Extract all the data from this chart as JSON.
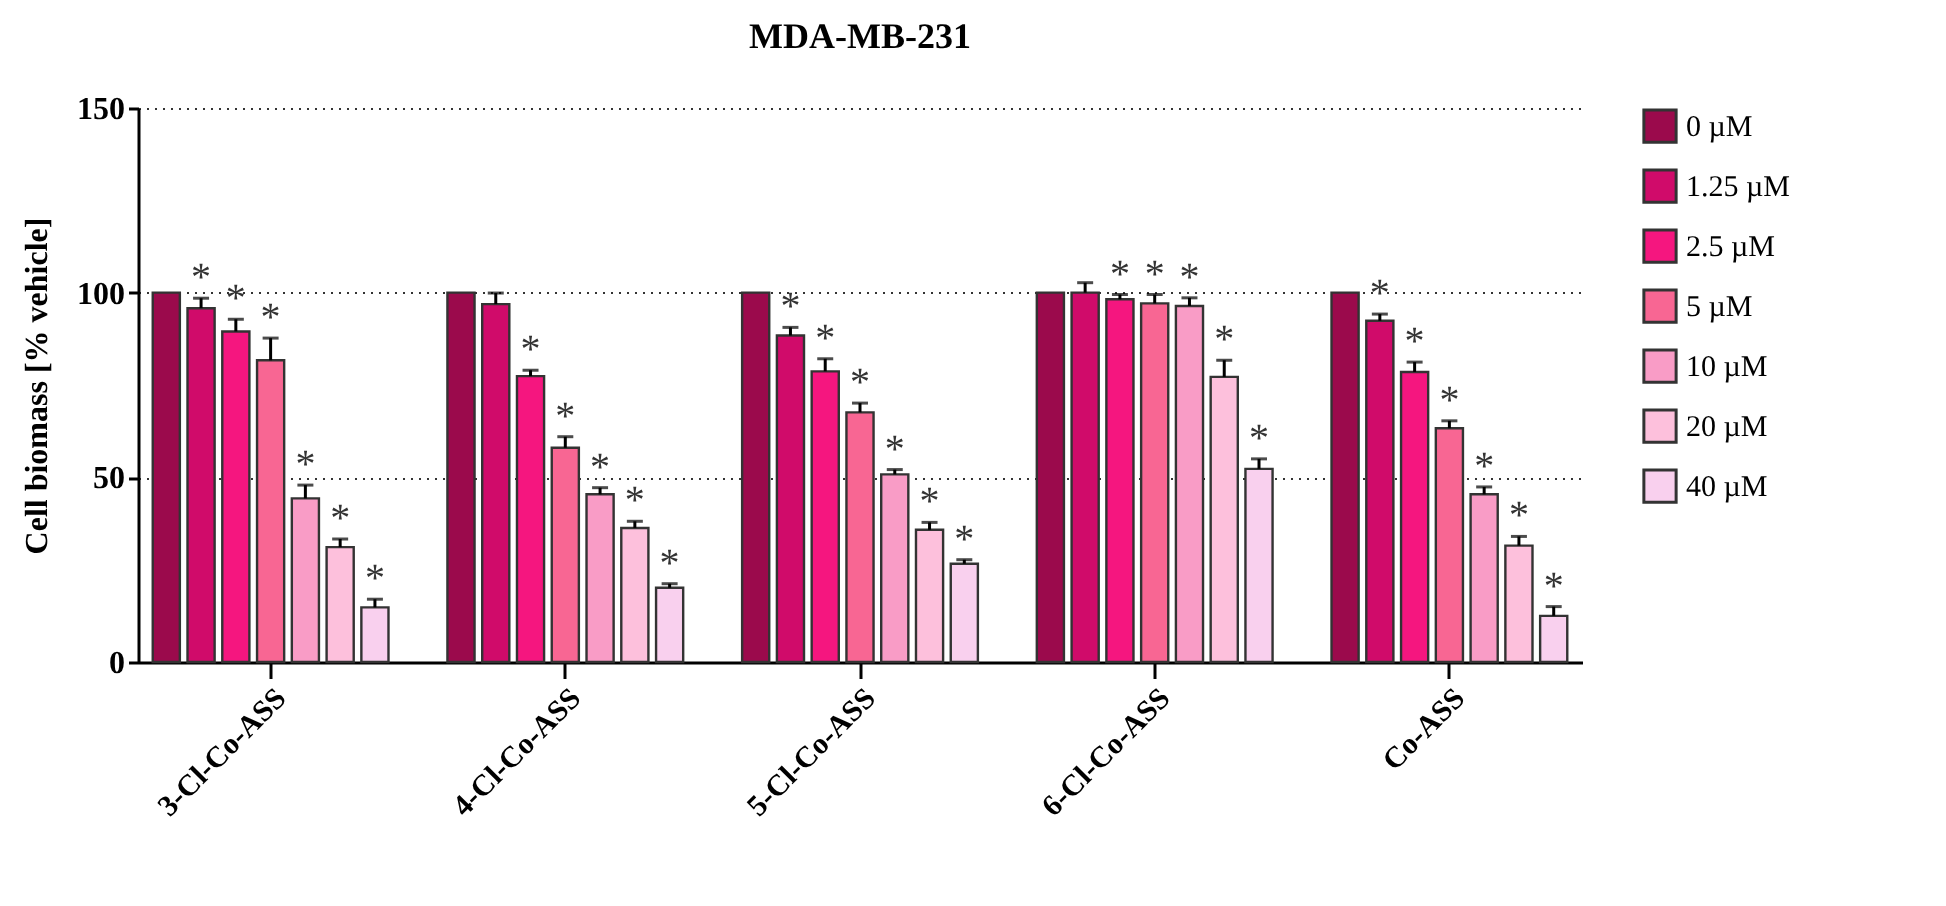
{
  "chart_data": {
    "type": "bar",
    "title": "MDA-MB-231",
    "ylabel": "Cell biomass [% vehicle]",
    "categories": [
      "3-Cl-Co-ASS",
      "4-Cl-Co-ASS",
      "5-Cl-Co-ASS",
      "6-Cl-Co-ASS",
      "Co-ASS"
    ],
    "ylim": [
      0,
      150
    ],
    "yticks": [
      0,
      50,
      100,
      150
    ],
    "grid": "y",
    "legend": "right",
    "series": [
      {
        "name": "0 µM",
        "color": "#9b0a4c",
        "values": [
          100,
          100,
          100,
          100,
          100
        ]
      },
      {
        "name": "1.25 µM",
        "color": "#d00b6a",
        "values": [
          95.8,
          96.9,
          88.4,
          100,
          92.4
        ],
        "errors": [
          2.7,
          3,
          2.2,
          2.7,
          1.8
        ],
        "value_labels": [
          "*",
          null,
          "*",
          null,
          "*"
        ]
      },
      {
        "name": "2.5 µM",
        "color": "#f5167f",
        "values": [
          89.5,
          77.4,
          78.7,
          98.2,
          78.5
        ],
        "errors": [
          3.3,
          1.6,
          3.4,
          1.3,
          2.7
        ],
        "value_labels": [
          "*",
          "*",
          "*",
          "*",
          "*"
        ]
      },
      {
        "name": "5 µM",
        "color": "#f86693",
        "values": [
          81.7,
          58,
          67.6,
          97.1,
          63.3
        ],
        "errors": [
          6,
          3,
          2.5,
          2.4,
          2
        ],
        "value_labels": [
          "*",
          "*",
          "*",
          "*",
          "*"
        ]
      },
      {
        "name": "10 µM",
        "color": "#f99cc6",
        "values": [
          44.3,
          45.4,
          50.8,
          96.4,
          45.4
        ],
        "errors": [
          3.6,
          1.8,
          1.3,
          2.2,
          2
        ],
        "value_labels": [
          "*",
          "*",
          "*",
          "*",
          "*"
        ]
      },
      {
        "name": "20 µM",
        "color": "#fdc0dc",
        "values": [
          31.1,
          36.3,
          35.8,
          77.2,
          31.5
        ],
        "errors": [
          2.2,
          1.8,
          2,
          4.5,
          2.5
        ],
        "value_labels": [
          "*",
          "*",
          "*",
          "*",
          "*"
        ]
      },
      {
        "name": "40 µM",
        "color": "#f9d0ee",
        "values": [
          14.8,
          20.1,
          26.6,
          52.3,
          12.5
        ],
        "errors": [
          2.2,
          1.1,
          1.1,
          2.7,
          2.5
        ],
        "value_labels": [
          "*",
          "*",
          "*",
          "*",
          "*"
        ]
      }
    ]
  }
}
